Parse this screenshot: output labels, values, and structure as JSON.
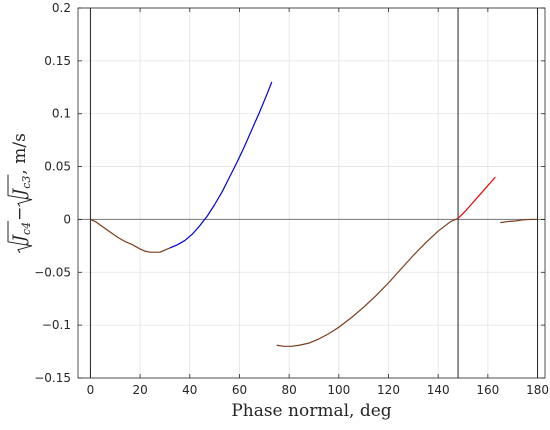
{
  "chart_data": {
    "type": "line",
    "xlabel": "Phase normal, deg",
    "ylabel": {
      "parts": [
        {
          "text": "J",
          "sub": "c4"
        },
        {
          "text": " − "
        },
        {
          "text": "J",
          "sub": "c3"
        },
        {
          "text": ", m/s"
        }
      ]
    },
    "xlim": [
      -5,
      183
    ],
    "ylim": [
      -0.15,
      0.2
    ],
    "xticks": [
      0,
      20,
      40,
      60,
      80,
      100,
      120,
      140,
      160,
      180
    ],
    "yticks": [
      -0.15,
      -0.1,
      -0.05,
      0,
      0.05,
      0.1,
      0.15,
      0.2
    ],
    "ytick_labels": [
      "−0.15",
      "−0.1",
      "−0.05",
      "0",
      "0.05",
      "0.1",
      "0.15",
      "0.2"
    ],
    "grid": true,
    "hlines": [
      {
        "y": 0,
        "color": "#777777"
      }
    ],
    "vlines": [
      {
        "x": 0,
        "color": "#222222"
      },
      {
        "x": 148,
        "color": "#222222"
      },
      {
        "x": 180,
        "color": "#222222"
      }
    ],
    "series": [
      {
        "color": "#7a3d1c",
        "x": [
          0,
          2,
          5,
          8,
          11,
          14,
          17,
          20,
          22,
          24,
          26,
          28,
          30,
          32
        ],
        "y": [
          0,
          -0.002,
          -0.007,
          -0.012,
          -0.017,
          -0.021,
          -0.024,
          -0.028,
          -0.03,
          -0.031,
          -0.031,
          -0.031,
          -0.029,
          -0.027
        ]
      },
      {
        "color": "#0000dd",
        "x": [
          32,
          35,
          38,
          41,
          44,
          47,
          50,
          53,
          56,
          59,
          62,
          65,
          68,
          71,
          73
        ],
        "y": [
          -0.027,
          -0.024,
          -0.02,
          -0.014,
          -0.006,
          0.003,
          0.014,
          0.026,
          0.04,
          0.054,
          0.069,
          0.085,
          0.101,
          0.118,
          0.13
        ]
      },
      {
        "color": "#7a3d1c",
        "x": [
          75,
          78,
          81,
          84,
          88,
          92,
          96,
          100,
          105,
          110,
          115,
          120,
          125,
          130,
          135,
          140,
          145,
          148
        ],
        "y": [
          -0.119,
          -0.12,
          -0.12,
          -0.119,
          -0.117,
          -0.113,
          -0.108,
          -0.102,
          -0.093,
          -0.083,
          -0.072,
          -0.06,
          -0.047,
          -0.034,
          -0.022,
          -0.011,
          -0.002,
          0.001
        ]
      },
      {
        "color": "#ee0000",
        "x": [
          148,
          151,
          154,
          157,
          160,
          163
        ],
        "y": [
          0.001,
          0.008,
          0.016,
          0.024,
          0.032,
          0.04
        ]
      },
      {
        "color": "#7a3d1c",
        "x": [
          165,
          168,
          171,
          174,
          177,
          180
        ],
        "y": [
          -0.003,
          -0.002,
          -0.0015,
          -0.0005,
          0,
          0
        ]
      }
    ]
  }
}
